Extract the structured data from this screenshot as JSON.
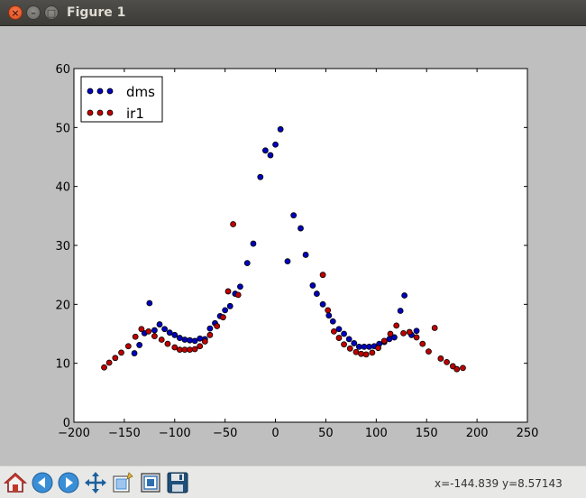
{
  "window": {
    "title": "Figure 1",
    "close_glyph": "×",
    "min_glyph": "–",
    "max_glyph": "□"
  },
  "toolbar": {
    "buttons": [
      {
        "name": "home-icon",
        "tooltip": ""
      },
      {
        "name": "back-icon",
        "tooltip": ""
      },
      {
        "name": "forward-icon",
        "tooltip": ""
      },
      {
        "name": "pan-icon",
        "tooltip": ""
      },
      {
        "name": "zoom-icon",
        "tooltip": ""
      },
      {
        "name": "subplots-icon",
        "tooltip": ""
      },
      {
        "name": "save-icon",
        "tooltip": ""
      }
    ],
    "x_readout": "x=-144.839",
    "y_readout": "y=8.57143"
  },
  "colors": {
    "dms": "#0000bf",
    "ir1": "#bf0000"
  },
  "chart_data": {
    "type": "scatter",
    "title": "",
    "xlabel": "",
    "ylabel": "",
    "xlim": [
      -200,
      250
    ],
    "ylim": [
      0,
      60
    ],
    "xticks": [
      "−200",
      "−150",
      "−100",
      "−50",
      "0",
      "50",
      "100",
      "150",
      "200",
      "250"
    ],
    "yticks": [
      "0",
      "10",
      "20",
      "30",
      "40",
      "50",
      "60"
    ],
    "legend_position": "top-left",
    "series": [
      {
        "name": "dms",
        "color": "#0000bf",
        "points": [
          [
            -140,
            11.7
          ],
          [
            -135,
            13.1
          ],
          [
            -130,
            15.1
          ],
          [
            -125,
            20.2
          ],
          [
            -120,
            15.6
          ],
          [
            -115,
            16.6
          ],
          [
            -110,
            15.8
          ],
          [
            -105,
            15.2
          ],
          [
            -100,
            14.8
          ],
          [
            -95,
            14.3
          ],
          [
            -90,
            14.0
          ],
          [
            -85,
            13.9
          ],
          [
            -80,
            13.8
          ],
          [
            -75,
            14.2
          ],
          [
            -70,
            14.1
          ],
          [
            -65,
            15.9
          ],
          [
            -60,
            16.8
          ],
          [
            -55,
            18.0
          ],
          [
            -50,
            19.0
          ],
          [
            -45,
            19.7
          ],
          [
            -40,
            21.8
          ],
          [
            -35,
            23.0
          ],
          [
            -28,
            27.0
          ],
          [
            -22,
            30.3
          ],
          [
            -15,
            41.6
          ],
          [
            -10,
            46.1
          ],
          [
            -5,
            45.3
          ],
          [
            0,
            47.1
          ],
          [
            5,
            49.7
          ],
          [
            12,
            27.3
          ],
          [
            18,
            35.1
          ],
          [
            25,
            32.9
          ],
          [
            30,
            28.4
          ],
          [
            37,
            23.2
          ],
          [
            41,
            21.8
          ],
          [
            47,
            20.0
          ],
          [
            53,
            18.1
          ],
          [
            57,
            17.1
          ],
          [
            63,
            15.8
          ],
          [
            68,
            15.0
          ],
          [
            73,
            14.1
          ],
          [
            78,
            13.4
          ],
          [
            83,
            12.8
          ],
          [
            88,
            12.8
          ],
          [
            93,
            12.8
          ],
          [
            98,
            12.9
          ],
          [
            103,
            13.3
          ],
          [
            108,
            13.6
          ],
          [
            113,
            14.1
          ],
          [
            118,
            14.4
          ],
          [
            124,
            18.9
          ],
          [
            128,
            21.5
          ],
          [
            135,
            14.8
          ],
          [
            140,
            15.5
          ]
        ]
      },
      {
        "name": "ir1",
        "color": "#bf0000",
        "points": [
          [
            -170,
            9.3
          ],
          [
            -165,
            10.1
          ],
          [
            -159,
            10.9
          ],
          [
            -153,
            11.8
          ],
          [
            -146,
            12.9
          ],
          [
            -139,
            14.5
          ],
          [
            -133,
            15.8
          ],
          [
            -126,
            15.4
          ],
          [
            -120,
            14.6
          ],
          [
            -113,
            14.0
          ],
          [
            -107,
            13.3
          ],
          [
            -100,
            12.7
          ],
          [
            -95,
            12.3
          ],
          [
            -90,
            12.3
          ],
          [
            -85,
            12.3
          ],
          [
            -80,
            12.4
          ],
          [
            -75,
            12.9
          ],
          [
            -70,
            13.7
          ],
          [
            -65,
            14.8
          ],
          [
            -58,
            16.3
          ],
          [
            -52,
            17.8
          ],
          [
            -47,
            22.2
          ],
          [
            -42,
            33.6
          ],
          [
            -37,
            21.6
          ],
          [
            47,
            25.0
          ],
          [
            52,
            19.0
          ],
          [
            58,
            15.4
          ],
          [
            63,
            14.3
          ],
          [
            68,
            13.2
          ],
          [
            74,
            12.5
          ],
          [
            80,
            11.9
          ],
          [
            85,
            11.6
          ],
          [
            90,
            11.5
          ],
          [
            96,
            11.8
          ],
          [
            102,
            12.6
          ],
          [
            108,
            13.8
          ],
          [
            114,
            15.0
          ],
          [
            120,
            16.4
          ],
          [
            127,
            15.1
          ],
          [
            133,
            15.3
          ],
          [
            140,
            14.4
          ],
          [
            146,
            13.3
          ],
          [
            152,
            12.0
          ],
          [
            158,
            16.0
          ],
          [
            164,
            10.8
          ],
          [
            170,
            10.2
          ],
          [
            176,
            9.5
          ],
          [
            180,
            9.0
          ],
          [
            186,
            9.2
          ]
        ]
      }
    ]
  }
}
